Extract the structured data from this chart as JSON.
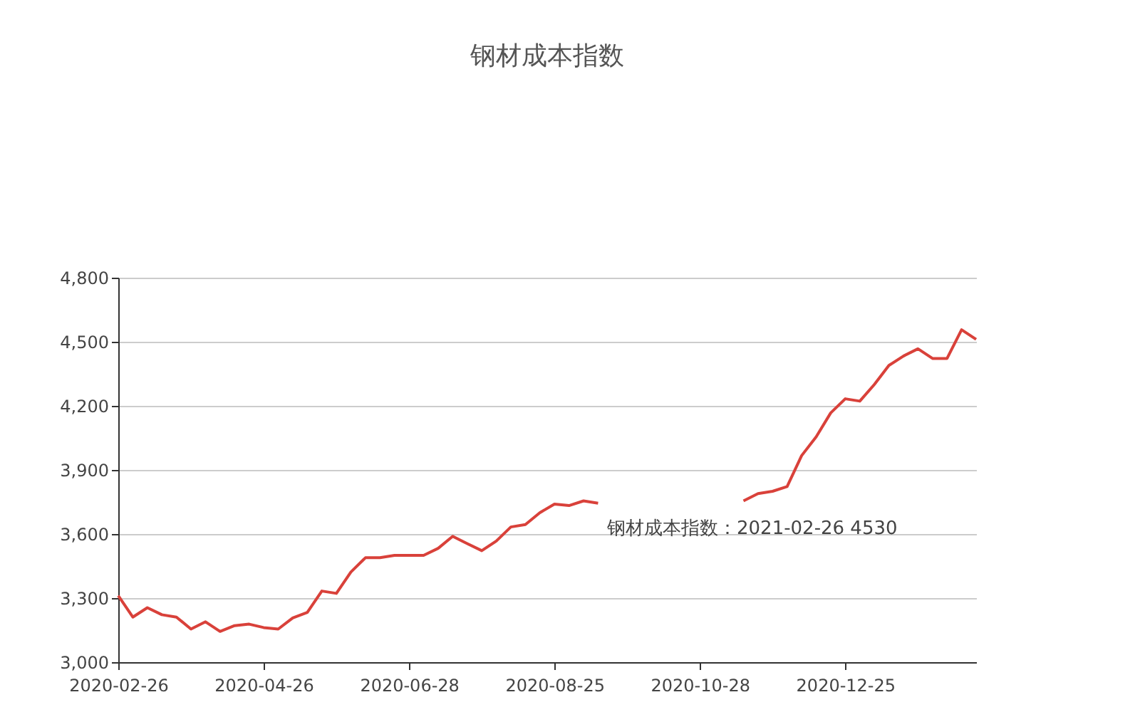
{
  "chart_data": {
    "type": "line",
    "title": "钢材成本指数",
    "categories": [
      "2020-02-26",
      null,
      null,
      null,
      null,
      null,
      null,
      null,
      null,
      null,
      "2020-04-26",
      null,
      null,
      null,
      null,
      null,
      null,
      null,
      null,
      null,
      "2020-06-28",
      null,
      null,
      null,
      null,
      null,
      null,
      null,
      null,
      null,
      "2020-08-25",
      null,
      null,
      null,
      null,
      null,
      null,
      null,
      null,
      null,
      "2020-10-28",
      null,
      null,
      null,
      null,
      null,
      null,
      null,
      null,
      null,
      "2020-12-25",
      null,
      null,
      null,
      null,
      null,
      null,
      null,
      null,
      null
    ],
    "series": [
      {
        "color": "#d9413a",
        "values": [
          3311,
          3211,
          3255,
          3222,
          3211,
          3155,
          3189,
          3144,
          3171,
          3178,
          3162,
          3155,
          3207,
          3233,
          3333,
          3322,
          3422,
          3489,
          3489,
          3500,
          3500,
          3500,
          3533,
          3589,
          3555,
          3522,
          3567,
          3633,
          3644,
          3700,
          3740,
          3733,
          3755,
          3744,
          null,
          null,
          null,
          null,
          null,
          null,
          null,
          null,
          null,
          3755,
          3789,
          3800,
          3822,
          3967,
          4055,
          4167,
          4233,
          4222,
          4300,
          4389,
          4433,
          4467,
          4422,
          4422,
          4556,
          4511
        ]
      }
    ],
    "ylim": [
      3000,
      4800
    ],
    "yticks": [
      {
        "value": 3000,
        "label": "3,000"
      },
      {
        "value": 3300,
        "label": "3,300"
      },
      {
        "value": 3600,
        "label": "3,600"
      },
      {
        "value": 3900,
        "label": "3,900"
      },
      {
        "value": 4200,
        "label": "4,200"
      },
      {
        "value": 4500,
        "label": "4,500"
      },
      {
        "value": 4800,
        "label": "4,800"
      }
    ],
    "grid": "y",
    "line_style": "solid",
    "annotations": [
      "钢材成本指数：2021-02-26 4530"
    ]
  }
}
